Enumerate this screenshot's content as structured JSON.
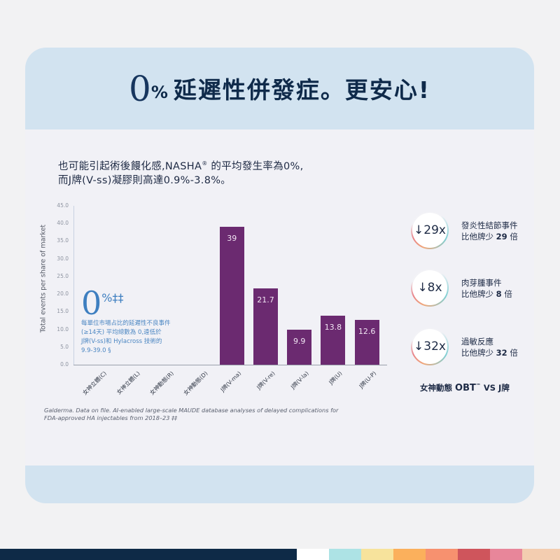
{
  "header": {
    "title_zero": "0",
    "title_pct": "%",
    "title_rest": "延遲性併發症。更安心!"
  },
  "intro": {
    "line1_a": "也可能引起術後饅化感,NASHA",
    "line1_reg": "®",
    "line1_b": " 的平均發生率為0%,",
    "line2": "而J牌(V-ss)凝膠則高達0.9%-3.8%。"
  },
  "chart_data": {
    "type": "bar",
    "title": "",
    "xlabel": "",
    "ylabel": "Total events per share of market",
    "ylim": [
      0,
      45
    ],
    "yticks": [
      "0.0",
      "5.0",
      "10.0",
      "15.0",
      "20.0",
      "25.0",
      "30.0",
      "35.0",
      "40.0",
      "45.0"
    ],
    "grid": false,
    "categories": [
      "女神立體(C)",
      "女神立體(L)",
      "女神動態(R)",
      "女神動態(D)",
      "J牌(V-ma)",
      "J牌(V-re)",
      "J牌(V-la)",
      "J牌(U)",
      "J牌(U-P)"
    ],
    "values": [
      0,
      0,
      0,
      0,
      39,
      21.7,
      9.9,
      13.8,
      12.6
    ],
    "value_labels": [
      "",
      "",
      "",
      "",
      "39",
      "21.7",
      "9.9",
      "13.8",
      "12.6"
    ],
    "bar_color": "#6b2a70",
    "annotation": {
      "big": "0",
      "symbols": "%‡‡",
      "lines": [
        "每單位市場占比的延遲性不良事件",
        "(≥14天) 平均總數為 0,遠低於",
        "J牌(V-ss)和 Hylacross 技術的",
        "9.9-39.0 §"
      ]
    }
  },
  "source": {
    "line1": "Galderma. Data on file. AI-enabled large-scale MAUDE database analyses of delayed complications for",
    "line2": "FDA-approved HA injectables from 2018–23 ‡‡"
  },
  "stats": [
    {
      "badge": "↓29x",
      "label": "發炎性結節事件",
      "prefix": "比他牌少 ",
      "num": "29",
      "suffix": " 倍"
    },
    {
      "badge": "↓8x",
      "label": "肉芽腫事件",
      "prefix": "比他牌少 ",
      "num": "8",
      "suffix": " 倍"
    },
    {
      "badge": "↓32x",
      "label": "過敏反應",
      "prefix": "比他牌少 ",
      "num": "32",
      "suffix": " 倍"
    }
  ],
  "compare": {
    "brand": "女神動態 ",
    "obt": "OBT",
    "tm": "™",
    "vs": "  VS  J牌"
  },
  "stripe_colors": [
    "#0e2a47",
    "#ffffff",
    "#ade3e5",
    "#f7e39c",
    "#fbb05c",
    "#f7916f",
    "#cf555c",
    "#e8869a",
    "#f3cdb0"
  ]
}
